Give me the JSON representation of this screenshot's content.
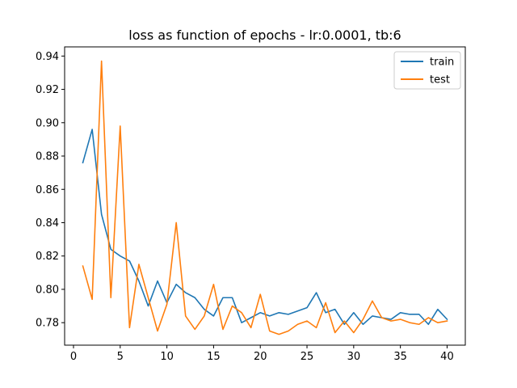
{
  "chart_data": {
    "type": "line",
    "title": "loss as function of epochs - lr:0.0001, tb:6",
    "xlabel": "",
    "ylabel": "",
    "xlim": [
      -0.95,
      41.95
    ],
    "ylim": [
      0.7665,
      0.9455
    ],
    "xticks": [
      0,
      5,
      10,
      15,
      20,
      25,
      30,
      35,
      40
    ],
    "yticks": [
      0.78,
      0.8,
      0.82,
      0.84,
      0.86,
      0.88,
      0.9,
      0.92,
      0.94
    ],
    "ytick_labels": [
      "0.78",
      "0.80",
      "0.82",
      "0.84",
      "0.86",
      "0.88",
      "0.90",
      "0.92",
      "0.94"
    ],
    "grid": false,
    "legend": "upper-right",
    "x": [
      1,
      2,
      3,
      4,
      5,
      6,
      7,
      8,
      9,
      10,
      11,
      12,
      13,
      14,
      15,
      16,
      17,
      18,
      19,
      20,
      21,
      22,
      23,
      24,
      25,
      26,
      27,
      28,
      29,
      30,
      31,
      32,
      33,
      34,
      35,
      36,
      37,
      38,
      39,
      40
    ],
    "series": [
      {
        "name": "train",
        "color": "#1f77b4",
        "values": [
          0.876,
          0.896,
          0.845,
          0.824,
          0.82,
          0.817,
          0.805,
          0.79,
          0.805,
          0.792,
          0.803,
          0.798,
          0.795,
          0.788,
          0.784,
          0.795,
          0.795,
          0.78,
          0.783,
          0.786,
          0.784,
          0.786,
          0.785,
          0.787,
          0.789,
          0.798,
          0.786,
          0.788,
          0.779,
          0.786,
          0.779,
          0.784,
          0.783,
          0.782,
          0.786,
          0.785,
          0.785,
          0.779,
          0.788,
          0.782
        ]
      },
      {
        "name": "test",
        "color": "#ff7f0e",
        "values": [
          0.814,
          0.794,
          0.937,
          0.795,
          0.898,
          0.777,
          0.815,
          0.795,
          0.775,
          0.791,
          0.84,
          0.784,
          0.776,
          0.784,
          0.803,
          0.776,
          0.79,
          0.786,
          0.777,
          0.797,
          0.775,
          0.773,
          0.775,
          0.779,
          0.781,
          0.777,
          0.792,
          0.774,
          0.781,
          0.774,
          0.782,
          0.793,
          0.783,
          0.781,
          0.782,
          0.78,
          0.779,
          0.783,
          0.78,
          0.781
        ]
      }
    ]
  }
}
